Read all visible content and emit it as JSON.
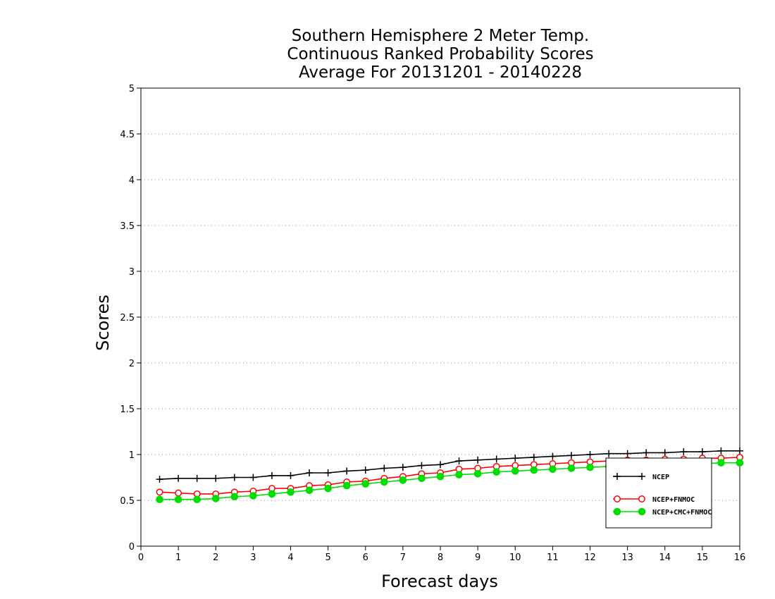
{
  "chart_data": {
    "type": "line",
    "title_lines": [
      "Southern Hemisphere 2 Meter Temp.",
      "Continuous Ranked Probability Scores",
      "Average For 20131201 - 20140228"
    ],
    "xlabel": "Forecast days",
    "ylabel": "Scores",
    "xlim": [
      0,
      16
    ],
    "ylim": [
      0,
      5
    ],
    "x_ticks": [
      "0",
      "1",
      "2",
      "3",
      "4",
      "5",
      "6",
      "7",
      "8",
      "9",
      "10",
      "11",
      "12",
      "13",
      "14",
      "15",
      "16"
    ],
    "y_ticks": [
      "0",
      "0.5",
      "1",
      "1.5",
      "2",
      "2.5",
      "3",
      "3.5",
      "4",
      "4.5",
      "5"
    ],
    "grid": "horizontal dotted",
    "legend_position": "bottom-right",
    "x": [
      0.5,
      1,
      1.5,
      2,
      2.5,
      3,
      3.5,
      4,
      4.5,
      5,
      5.5,
      6,
      6.5,
      7,
      7.5,
      8,
      8.5,
      9,
      9.5,
      10,
      10.5,
      11,
      11.5,
      12,
      12.5,
      13,
      13.5,
      14,
      14.5,
      15,
      15.5,
      16
    ],
    "series": [
      {
        "name": "NCEP",
        "color": "#000000",
        "marker": "plus",
        "values": [
          0.73,
          0.74,
          0.74,
          0.74,
          0.75,
          0.75,
          0.77,
          0.77,
          0.8,
          0.8,
          0.82,
          0.83,
          0.85,
          0.86,
          0.88,
          0.89,
          0.93,
          0.94,
          0.95,
          0.96,
          0.97,
          0.98,
          0.99,
          1.0,
          1.01,
          1.01,
          1.02,
          1.02,
          1.03,
          1.03,
          1.04,
          1.04
        ]
      },
      {
        "name": "NCEP+FNMOC",
        "color": "#ff0000",
        "marker": "open-circle",
        "values": [
          0.59,
          0.58,
          0.57,
          0.57,
          0.59,
          0.6,
          0.63,
          0.63,
          0.66,
          0.67,
          0.7,
          0.71,
          0.74,
          0.76,
          0.79,
          0.8,
          0.84,
          0.85,
          0.87,
          0.88,
          0.89,
          0.9,
          0.91,
          0.92,
          0.93,
          0.94,
          0.94,
          0.95,
          0.95,
          0.96,
          0.96,
          0.97
        ]
      },
      {
        "name": "NCEP+CMC+FNMOC",
        "color": "#00dd00",
        "marker": "filled-circle",
        "values": [
          0.51,
          0.51,
          0.51,
          0.52,
          0.54,
          0.55,
          0.57,
          0.59,
          0.61,
          0.63,
          0.66,
          0.68,
          0.7,
          0.72,
          0.74,
          0.76,
          0.78,
          0.79,
          0.81,
          0.82,
          0.83,
          0.84,
          0.85,
          0.86,
          0.87,
          0.88,
          0.89,
          0.89,
          0.9,
          0.9,
          0.91,
          0.91
        ]
      }
    ]
  }
}
